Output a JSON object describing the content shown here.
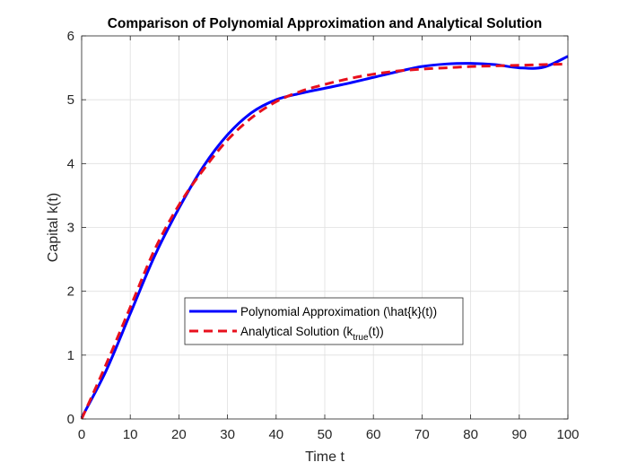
{
  "chart_data": {
    "type": "line",
    "title": "Comparison of Polynomial Approximation and Analytical Solution",
    "xlabel": "Time t",
    "ylabel": "Capital k(t)",
    "xlim": [
      0,
      100
    ],
    "ylim": [
      0,
      6
    ],
    "xticks": [
      "0",
      "10",
      "20",
      "30",
      "40",
      "50",
      "60",
      "70",
      "80",
      "90",
      "100"
    ],
    "yticks": [
      "0",
      "1",
      "2",
      "3",
      "4",
      "5",
      "6"
    ],
    "grid": true,
    "legend_position": "center",
    "series": [
      {
        "name": "Polynomial Approximation (\\hat{k}(t))",
        "style": "solid",
        "color": "#0000ff",
        "x": [
          0,
          5,
          10,
          15,
          20,
          25,
          30,
          35,
          40,
          45,
          50,
          55,
          60,
          65,
          70,
          75,
          80,
          85,
          90,
          95,
          100
        ],
        "y": [
          0.02,
          0.75,
          1.65,
          2.55,
          3.3,
          3.95,
          4.45,
          4.8,
          5.0,
          5.1,
          5.18,
          5.26,
          5.35,
          5.44,
          5.52,
          5.56,
          5.57,
          5.55,
          5.5,
          5.51,
          5.68
        ]
      },
      {
        "name": "Analytical Solution (k_true(t))",
        "name_main": "Analytical Solution (k",
        "name_sub": "true",
        "name_end": "(t))",
        "style": "dashed",
        "color": "#e8101d",
        "x": [
          0,
          5,
          10,
          15,
          20,
          25,
          30,
          35,
          40,
          45,
          50,
          55,
          60,
          65,
          70,
          75,
          80,
          85,
          90,
          95,
          100
        ],
        "y": [
          0.0,
          0.85,
          1.75,
          2.65,
          3.35,
          3.9,
          4.37,
          4.72,
          4.97,
          5.13,
          5.24,
          5.33,
          5.4,
          5.45,
          5.48,
          5.5,
          5.52,
          5.53,
          5.54,
          5.55,
          5.56
        ]
      }
    ]
  }
}
